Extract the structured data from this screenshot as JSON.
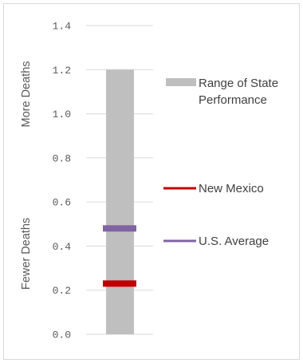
{
  "chart_data": {
    "type": "bar",
    "title": "",
    "ylim": [
      0,
      1.4
    ],
    "y_ticks": [
      "0.0",
      "0.2",
      "0.4",
      "0.6",
      "0.8",
      "1.0",
      "1.2",
      "1.4"
    ],
    "grid": true,
    "y_side_labels": {
      "top": "More Deaths",
      "bottom": "Fewer Deaths"
    },
    "range": {
      "name": "Range of State Performance",
      "name_lines": [
        "Range of State",
        "Performance"
      ],
      "min": 0.0,
      "max": 1.2,
      "color": "#bfbfbf"
    },
    "markers": [
      {
        "name": "New Mexico",
        "value": 0.23,
        "color": "#c00000"
      },
      {
        "name": "U.S. Average",
        "value": 0.48,
        "color": "#8064a2"
      }
    ],
    "legend_position": "right"
  }
}
